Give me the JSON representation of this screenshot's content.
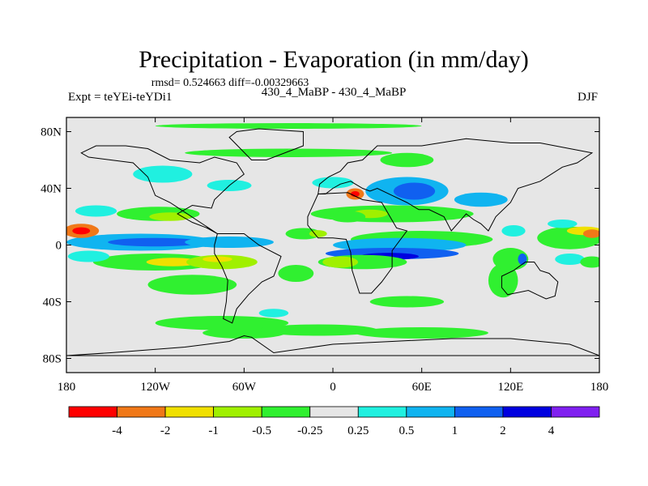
{
  "chart_data": {
    "type": "heatmap",
    "title": "Precipitation - Evaporation (in mm/day)",
    "stats_line": "rmsd= 0.524663 diff=-0.00329663",
    "left_label": "Expt = teYEi-teYDi1",
    "center_label": "430_4_MaBP - 430_4_MaBP",
    "right_label": "DJF",
    "x_ticks": [
      "180",
      "120W",
      "60W",
      "0",
      "60E",
      "120E",
      "180"
    ],
    "y_ticks": [
      "80N",
      "40N",
      "0",
      "40S",
      "80S"
    ],
    "x_range": [
      -180,
      180
    ],
    "y_range": [
      -90,
      90
    ],
    "x_tick_values": [
      -180,
      -120,
      -60,
      0,
      60,
      120,
      180
    ],
    "y_tick_values": [
      80,
      40,
      0,
      -40,
      -80
    ],
    "colorbar": {
      "levels": [
        "-4",
        "-2",
        "-1",
        "-0.5",
        "-0.25",
        "0.25",
        "0.5",
        "1",
        "2",
        "4"
      ],
      "colors": [
        "#ff0000",
        "#f07818",
        "#f0e000",
        "#a0f000",
        "#30f030",
        "#e6e6e6",
        "#20f0e0",
        "#10b4f0",
        "#1060f0",
        "#0000e0",
        "#8020f0"
      ]
    },
    "background_color": "#e6e6e6",
    "blobs": [
      {
        "lon": -130,
        "lat": 2,
        "rx": 50,
        "ry": 6,
        "level": 7
      },
      {
        "lon": -120,
        "lat": 2,
        "rx": 32,
        "ry": 3,
        "level": 8
      },
      {
        "lon": -118,
        "lat": 22,
        "rx": 28,
        "ry": 5,
        "level": 4
      },
      {
        "lon": -110,
        "lat": 20,
        "rx": 14,
        "ry": 3,
        "level": 3
      },
      {
        "lon": -120,
        "lat": -12,
        "rx": 42,
        "ry": 6,
        "level": 4
      },
      {
        "lon": -108,
        "lat": -12,
        "rx": 18,
        "ry": 3,
        "level": 2
      },
      {
        "lon": -75,
        "lat": -12,
        "rx": 24,
        "ry": 5,
        "level": 3
      },
      {
        "lon": -78,
        "lat": -10,
        "rx": 10,
        "ry": 2,
        "level": 2
      },
      {
        "lon": -70,
        "lat": 2,
        "rx": 30,
        "ry": 4,
        "level": 7
      },
      {
        "lon": -95,
        "lat": -28,
        "rx": 30,
        "ry": 7,
        "level": 4
      },
      {
        "lon": -170,
        "lat": 10,
        "rx": 12,
        "ry": 5,
        "level": 1
      },
      {
        "lon": -170,
        "lat": 10,
        "rx": 6,
        "ry": 2.5,
        "level": 0
      },
      {
        "lon": -165,
        "lat": -8,
        "rx": 14,
        "ry": 4,
        "level": 6
      },
      {
        "lon": -160,
        "lat": 24,
        "rx": 14,
        "ry": 4,
        "level": 6
      },
      {
        "lon": -115,
        "lat": 50,
        "rx": 20,
        "ry": 6,
        "level": 6
      },
      {
        "lon": -70,
        "lat": 42,
        "rx": 15,
        "ry": 4,
        "level": 6
      },
      {
        "lon": -30,
        "lat": 65,
        "rx": 70,
        "ry": 3,
        "level": 4
      },
      {
        "lon": 50,
        "lat": 60,
        "rx": 18,
        "ry": 5,
        "level": 4
      },
      {
        "lon": 0,
        "lat": 44,
        "rx": 14,
        "ry": 4,
        "level": 6
      },
      {
        "lon": 50,
        "lat": 38,
        "rx": 28,
        "ry": 10,
        "level": 7
      },
      {
        "lon": 55,
        "lat": 38,
        "rx": 14,
        "ry": 6,
        "level": 8
      },
      {
        "lon": 100,
        "lat": 32,
        "rx": 18,
        "ry": 5,
        "level": 7
      },
      {
        "lon": 40,
        "lat": 22,
        "rx": 55,
        "ry": 6,
        "level": 4
      },
      {
        "lon": 25,
        "lat": 22,
        "rx": 12,
        "ry": 3,
        "level": 3
      },
      {
        "lon": 60,
        "lat": 4,
        "rx": 48,
        "ry": 6,
        "level": 4
      },
      {
        "lon": 45,
        "lat": 0,
        "rx": 45,
        "ry": 5,
        "level": 7
      },
      {
        "lon": 40,
        "lat": -6,
        "rx": 45,
        "ry": 4,
        "level": 8
      },
      {
        "lon": 38,
        "lat": -8,
        "rx": 20,
        "ry": 2.5,
        "level": 9
      },
      {
        "lon": 20,
        "lat": -12,
        "rx": 30,
        "ry": 5,
        "level": 4
      },
      {
        "lon": 5,
        "lat": -12,
        "rx": 12,
        "ry": 4,
        "level": 3
      },
      {
        "lon": -25,
        "lat": -20,
        "rx": 12,
        "ry": 6,
        "level": 4
      },
      {
        "lon": -20,
        "lat": 8,
        "rx": 12,
        "ry": 4,
        "level": 4
      },
      {
        "lon": -10,
        "lat": 8,
        "rx": 6,
        "ry": 2.5,
        "level": 3
      },
      {
        "lon": 10,
        "lat": 20,
        "rx": 12,
        "ry": 4,
        "level": 4
      },
      {
        "lon": 15,
        "lat": 36,
        "rx": 6,
        "ry": 4,
        "level": 1
      },
      {
        "lon": 15,
        "lat": 36,
        "rx": 3,
        "ry": 2,
        "level": 0
      },
      {
        "lon": -75,
        "lat": -55,
        "rx": 45,
        "ry": 5,
        "level": 4
      },
      {
        "lon": -60,
        "lat": -62,
        "rx": 28,
        "ry": 4,
        "level": 4
      },
      {
        "lon": -10,
        "lat": -60,
        "rx": 40,
        "ry": 4,
        "level": 4
      },
      {
        "lon": 60,
        "lat": -62,
        "rx": 45,
        "ry": 4,
        "level": 4
      },
      {
        "lon": -40,
        "lat": -48,
        "rx": 10,
        "ry": 3,
        "level": 6
      },
      {
        "lon": 50,
        "lat": -40,
        "rx": 25,
        "ry": 4,
        "level": 4
      },
      {
        "lon": 115,
        "lat": -25,
        "rx": 10,
        "ry": 12,
        "level": 4
      },
      {
        "lon": 120,
        "lat": -10,
        "rx": 12,
        "ry": 8,
        "level": 4
      },
      {
        "lon": 160,
        "lat": 5,
        "rx": 22,
        "ry": 8,
        "level": 4
      },
      {
        "lon": 170,
        "lat": 10,
        "rx": 12,
        "ry": 3,
        "level": 2
      },
      {
        "lon": 175,
        "lat": 8,
        "rx": 6,
        "ry": 3,
        "level": 1
      },
      {
        "lon": 155,
        "lat": 15,
        "rx": 10,
        "ry": 3,
        "level": 6
      },
      {
        "lon": 122,
        "lat": 10,
        "rx": 8,
        "ry": 4,
        "level": 6
      },
      {
        "lon": 128,
        "lat": -10,
        "rx": 3,
        "ry": 4,
        "level": 8
      },
      {
        "lon": 160,
        "lat": -10,
        "rx": 10,
        "ry": 4,
        "level": 6
      },
      {
        "lon": 175,
        "lat": -12,
        "rx": 8,
        "ry": 4,
        "level": 4
      },
      {
        "lon": -30,
        "lat": 84,
        "rx": 90,
        "ry": 2,
        "level": 4
      }
    ]
  }
}
